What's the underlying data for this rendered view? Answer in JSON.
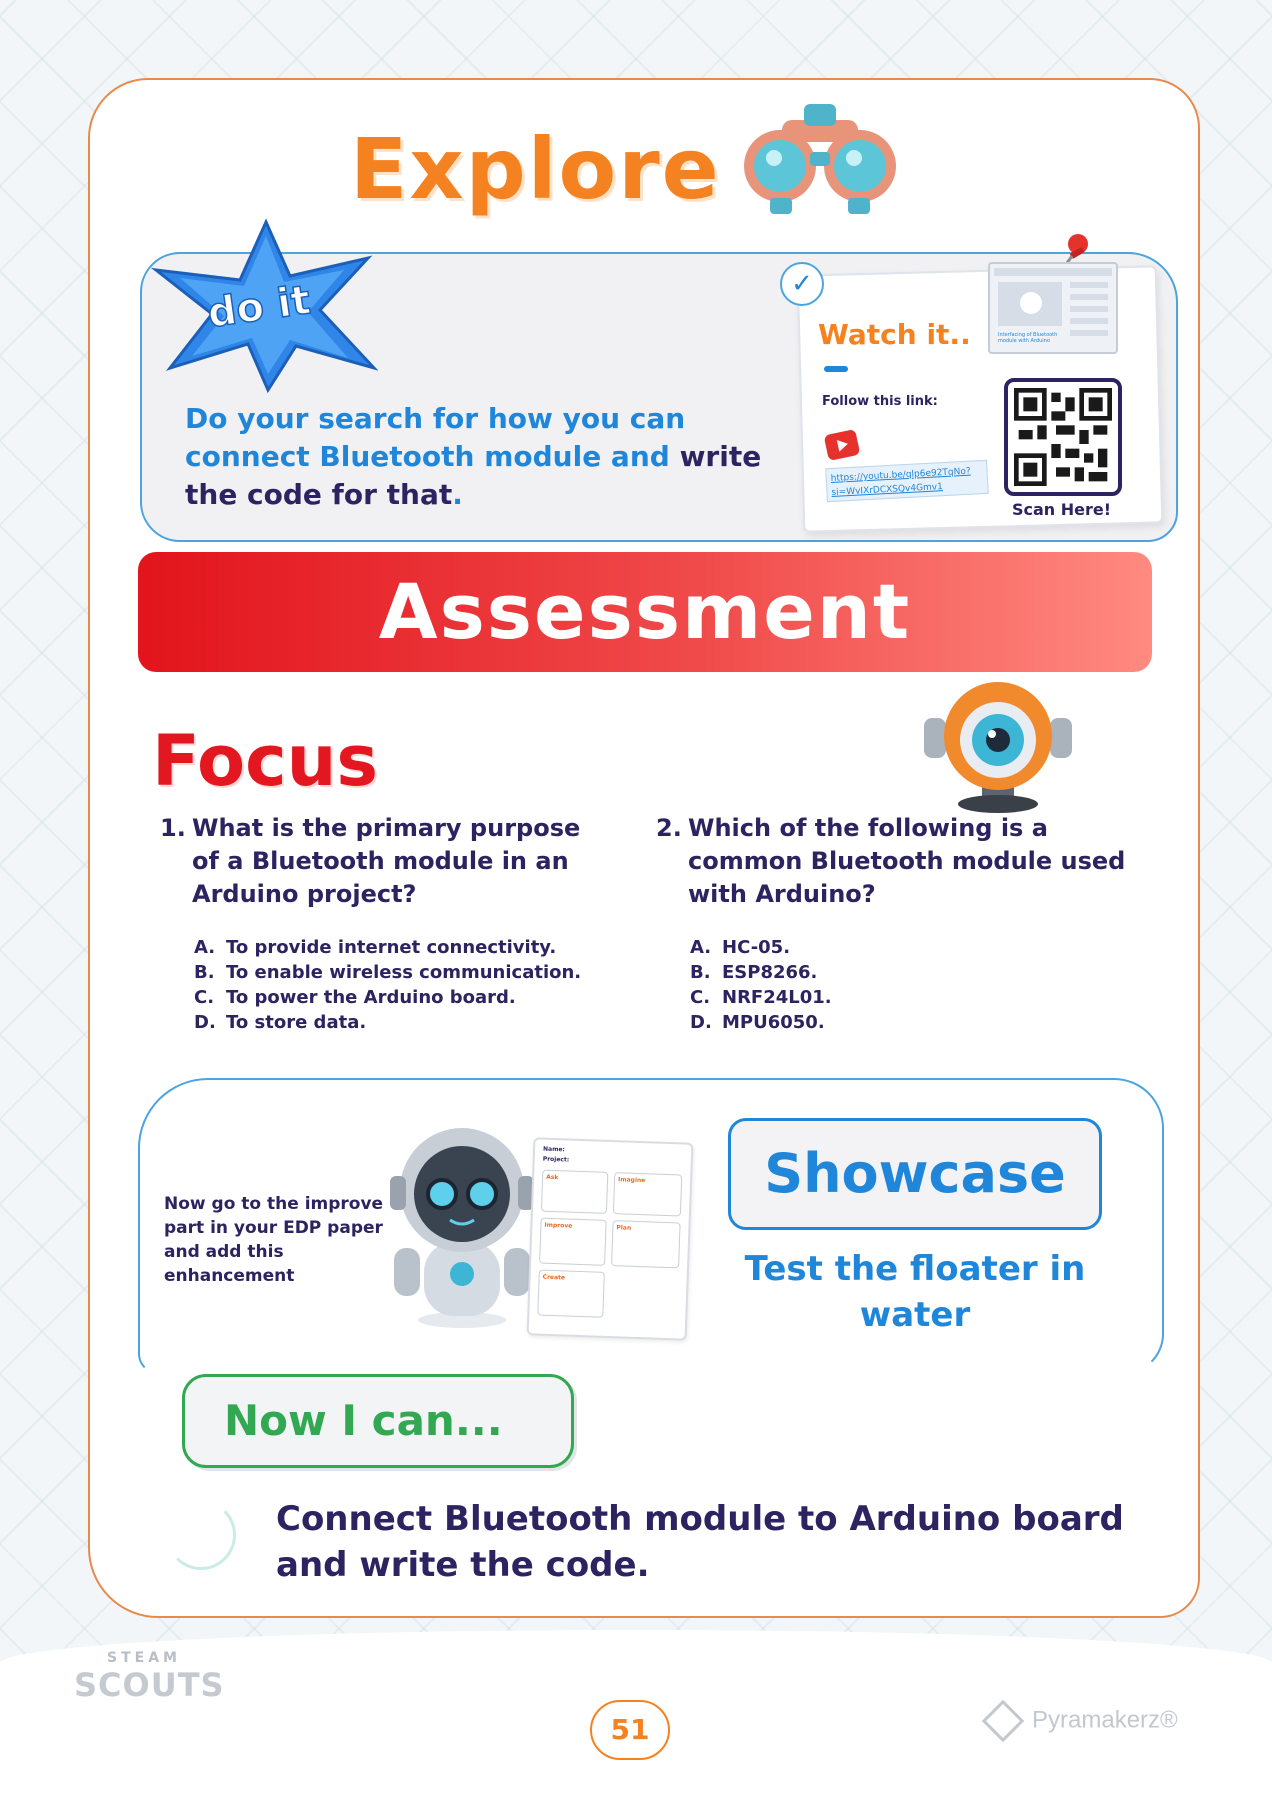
{
  "explore": {
    "title": "Explore",
    "badge_label": "do it",
    "instruction_blue": "Do your search for how you can connect Bluetooth module and",
    "instruction_dark": "write the code for that",
    "instruction_end": "."
  },
  "watch_card": {
    "title": "Watch it..",
    "follow_label": "Follow this link:",
    "link": "https://youtu.be/qlp6e92TqNo?si=WvIXrDCXSQv4Gmv1",
    "scan_label": "Scan Here!",
    "thumb_caption": "Interfacing of Bluetooth module with Arduino"
  },
  "assessment": {
    "title": "Assessment",
    "focus_title": "Focus",
    "questions": [
      {
        "number": "1.",
        "text": "What is the primary purpose of a Bluetooth module in an Arduino project?",
        "options": [
          {
            "letter": "A.",
            "text": "To provide internet connectivity."
          },
          {
            "letter": "B.",
            "text": "To enable wireless communication."
          },
          {
            "letter": "C.",
            "text": "To power the Arduino board."
          },
          {
            "letter": "D.",
            "text": "To store data."
          }
        ]
      },
      {
        "number": "2.",
        "text": "Which of the following is a common Bluetooth module used with Arduino?",
        "options": [
          {
            "letter": "A.",
            "text": "HC-05."
          },
          {
            "letter": "B.",
            "text": "ESP8266."
          },
          {
            "letter": "C.",
            "text": "NRF24L01."
          },
          {
            "letter": "D.",
            "text": "MPU6050."
          }
        ]
      }
    ]
  },
  "showcase": {
    "improve_text": "Now go to the improve part in your EDP paper and add this enhancement",
    "edp_labels": {
      "name": "Name:",
      "project": "Project:",
      "ask": "Ask",
      "imagine": "Imagine",
      "improve": "Improve",
      "plan": "Plan",
      "create": "Create"
    },
    "button_label": "Showcase",
    "task": "Test the floater in water"
  },
  "now_i_can": {
    "title": "Now I can...",
    "statement": "Connect Bluetooth module to Arduino board and write the code."
  },
  "footer": {
    "steam_top": "STEAM",
    "steam_bottom": "SCOUTS",
    "page_number": "51",
    "brand": "Pyramakerz®"
  },
  "colors": {
    "orange": "#f58220",
    "blue": "#1f86d9",
    "red": "#e3171f",
    "green": "#33a852",
    "navy": "#2d2360"
  }
}
